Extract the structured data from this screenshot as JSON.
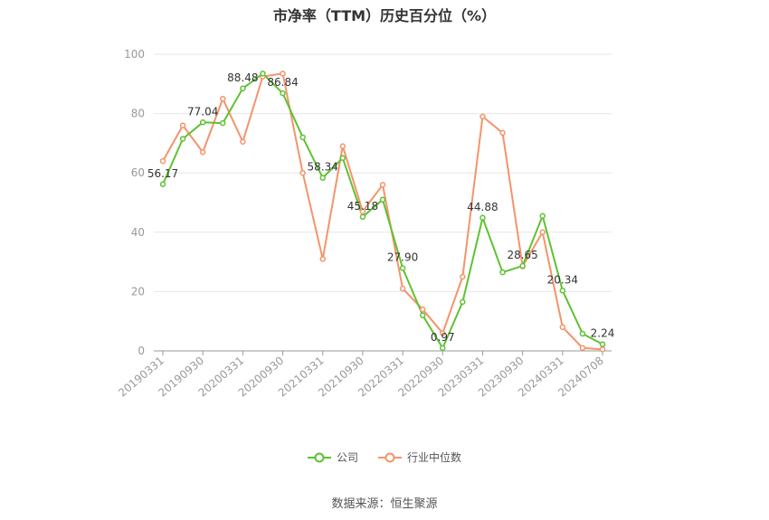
{
  "title": "市净率（TTM）历史百分位（%）",
  "source": "数据来源：恒生聚源",
  "colors": {
    "company": "#5ec232",
    "industry": "#f4946a",
    "grid": "#e6e6e6",
    "axis": "#999999"
  },
  "chart_data": {
    "type": "line",
    "title": "市净率（TTM）历史百分位（%）",
    "xlabel": "",
    "ylabel": "",
    "ylim": [
      0,
      100
    ],
    "yticks": [
      0,
      20,
      40,
      60,
      80,
      100
    ],
    "grid": true,
    "legend_position": "bottom",
    "x_tick_labels": [
      "20190331",
      "20190930",
      "20200331",
      "20200930",
      "20210331",
      "20210930",
      "20220331",
      "20220930",
      "20230331",
      "20230930",
      "20240331",
      "20240708"
    ],
    "x_tick_indices": [
      0,
      2,
      4,
      6,
      8,
      10,
      12,
      14,
      16,
      18,
      20,
      22
    ],
    "series": [
      {
        "name": "公司",
        "values": [
          56.17,
          71.5,
          77.04,
          76.8,
          88.48,
          93.5,
          86.84,
          72.0,
          58.34,
          65.0,
          45.18,
          51.0,
          27.9,
          12.0,
          0.97,
          16.5,
          44.88,
          26.5,
          28.65,
          45.5,
          20.34,
          5.8,
          2.24
        ],
        "labels": {
          "0": "56.17",
          "2": "77.04",
          "4": "88.48",
          "6": "86.84",
          "8": "58.34",
          "10": "45.18",
          "12": "27.90",
          "14": "0.97",
          "16": "44.88",
          "18": "28.65",
          "20": "20.34",
          "22": "2.24"
        }
      },
      {
        "name": "行业中位数",
        "values": [
          64.0,
          76.0,
          67.0,
          85.0,
          70.5,
          92.5,
          93.5,
          60.0,
          31.0,
          69.0,
          47.0,
          56.0,
          21.0,
          14.0,
          6.0,
          25.0,
          79.0,
          73.5,
          28.5,
          40.0,
          8.0,
          1.0,
          0.5
        ]
      }
    ]
  }
}
